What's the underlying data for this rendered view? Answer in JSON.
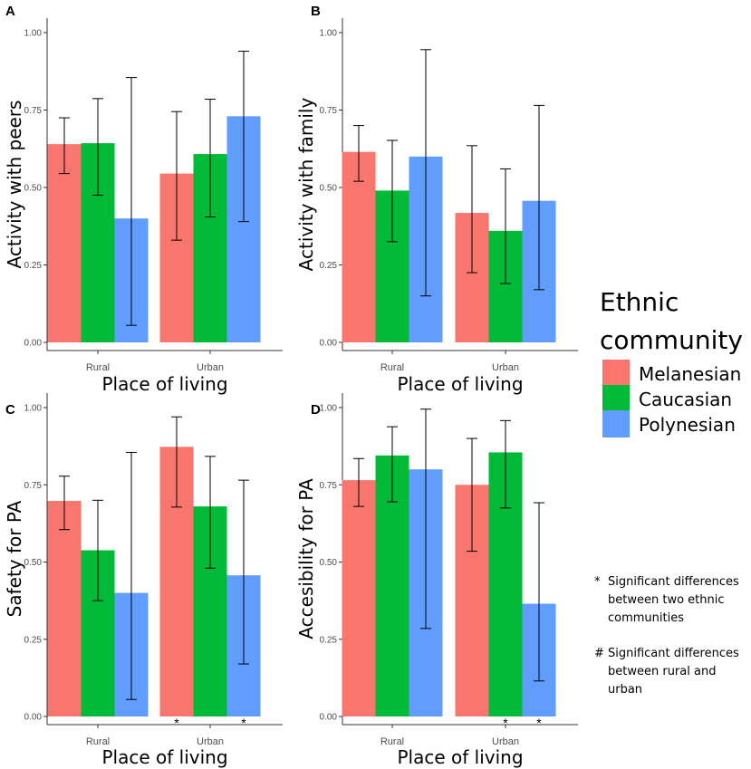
{
  "chart_data": [
    {
      "panel": "A",
      "type": "bar",
      "categories": [
        "Rural",
        "Urban"
      ],
      "series": [
        {
          "name": "Melanesian",
          "values": [
            0.64,
            0.545
          ],
          "lower": [
            0.545,
            0.33
          ],
          "upper": [
            0.725,
            0.745
          ]
        },
        {
          "name": "Caucasian",
          "values": [
            0.643,
            0.608
          ],
          "lower": [
            0.475,
            0.405
          ],
          "upper": [
            0.787,
            0.785
          ]
        },
        {
          "name": "Polynesian",
          "values": [
            0.4,
            0.73
          ],
          "lower": [
            0.055,
            0.39
          ],
          "upper": [
            0.855,
            0.94
          ]
        }
      ],
      "significance": [
        [],
        []
      ],
      "xlabel": "Place of living",
      "ylabel": "Activity with peers",
      "ylim": [
        0,
        1
      ],
      "yticks": [
        "0.00",
        "0.25",
        "0.50",
        "0.75",
        "1.00"
      ]
    },
    {
      "panel": "B",
      "type": "bar",
      "categories": [
        "Rural",
        "Urban"
      ],
      "series": [
        {
          "name": "Melanesian",
          "values": [
            0.615,
            0.418
          ],
          "lower": [
            0.52,
            0.225
          ],
          "upper": [
            0.7,
            0.635
          ]
        },
        {
          "name": "Caucasian",
          "values": [
            0.49,
            0.36
          ],
          "lower": [
            0.325,
            0.19
          ],
          "upper": [
            0.652,
            0.56
          ]
        },
        {
          "name": "Polynesian",
          "values": [
            0.6,
            0.457
          ],
          "lower": [
            0.15,
            0.17
          ],
          "upper": [
            0.945,
            0.765
          ]
        }
      ],
      "significance": [
        [],
        []
      ],
      "xlabel": "Place of living",
      "ylabel": "Activity with family",
      "ylim": [
        0,
        1
      ],
      "yticks": [
        "0.00",
        "0.25",
        "0.50",
        "0.75",
        "1.00"
      ]
    },
    {
      "panel": "C",
      "type": "bar",
      "categories": [
        "Rural",
        "Urban"
      ],
      "series": [
        {
          "name": "Melanesian",
          "values": [
            0.698,
            0.873
          ],
          "lower": [
            0.605,
            0.678
          ],
          "upper": [
            0.778,
            0.97
          ]
        },
        {
          "name": "Caucasian",
          "values": [
            0.538,
            0.68
          ],
          "lower": [
            0.375,
            0.48
          ],
          "upper": [
            0.7,
            0.842
          ]
        },
        {
          "name": "Polynesian",
          "values": [
            0.4,
            0.457
          ],
          "lower": [
            0.055,
            0.17
          ],
          "upper": [
            0.855,
            0.765
          ]
        }
      ],
      "significance": [
        [
          "",
          "",
          ""
        ],
        [
          "*",
          "",
          "*"
        ]
      ],
      "xlabel": "Place of living",
      "ylabel": "Safety for PA",
      "ylim": [
        0,
        1
      ],
      "yticks": [
        "0.00",
        "0.25",
        "0.50",
        "0.75",
        "1.00"
      ]
    },
    {
      "panel": "D",
      "type": "bar",
      "categories": [
        "Rural",
        "Urban"
      ],
      "series": [
        {
          "name": "Melanesian",
          "values": [
            0.765,
            0.75
          ],
          "lower": [
            0.68,
            0.535
          ],
          "upper": [
            0.835,
            0.9
          ]
        },
        {
          "name": "Caucasian",
          "values": [
            0.845,
            0.855
          ],
          "lower": [
            0.695,
            0.675
          ],
          "upper": [
            0.938,
            0.958
          ]
        },
        {
          "name": "Polynesian",
          "values": [
            0.8,
            0.365
          ],
          "lower": [
            0.285,
            0.115
          ],
          "upper": [
            0.995,
            0.692
          ]
        }
      ],
      "significance": [
        [
          "",
          "",
          ""
        ],
        [
          "",
          "*",
          "*"
        ]
      ],
      "xlabel": "Place of living",
      "ylabel": "Accesibility for PA",
      "ylim": [
        0,
        1
      ],
      "yticks": [
        "0.00",
        "0.25",
        "0.50",
        "0.75",
        "1.00"
      ]
    }
  ],
  "legend": {
    "title_line1": "Ethnic",
    "title_line2": "community",
    "items": [
      {
        "label": "Melanesian",
        "color": "#F8766D"
      },
      {
        "label": "Caucasian",
        "color": "#00BA38"
      },
      {
        "label": "Polynesian",
        "color": "#619CFF"
      }
    ]
  },
  "notes": {
    "star_symbol": "*",
    "star_lines": [
      "Significant differences",
      "between two ethnic",
      "communities"
    ],
    "hash_symbol": "#",
    "hash_lines": [
      "Significant differences",
      "between rural and",
      "urban"
    ]
  }
}
